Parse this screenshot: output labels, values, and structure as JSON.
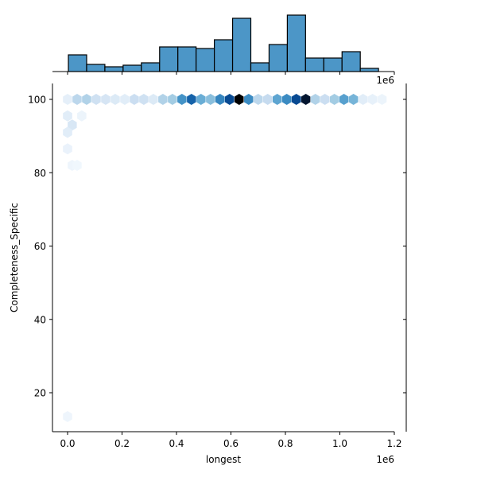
{
  "chart_data": {
    "type": "hexbin",
    "kind": "jointplot",
    "title": "",
    "xlabel": "longest",
    "ylabel": "Completeness_Specific",
    "x_offset_label": "1e6",
    "top_offset_label": "1e6",
    "xlim": [
      -0.05,
      1.22
    ],
    "ylim": [
      9.5,
      104.5
    ],
    "x_scale": 1000000,
    "xticks": [
      0.0,
      0.2,
      0.4,
      0.6,
      0.8,
      1.0,
      1.2
    ],
    "xtick_labels": [
      "0.0",
      "0.2",
      "0.4",
      "0.6",
      "0.8",
      "1.0",
      "1.2"
    ],
    "yticks": [
      20,
      40,
      60,
      80,
      100
    ],
    "ytick_labels": [
      "20",
      "40",
      "60",
      "80",
      "100"
    ],
    "grid": false,
    "colormap": "Blues",
    "bar_color": "#4c96c7",
    "bar_edge_color": "#000000",
    "marginal_x_histogram": {
      "bin_edges_1e6": [
        0.003,
        0.07,
        0.137,
        0.204,
        0.271,
        0.338,
        0.405,
        0.472,
        0.539,
        0.606,
        0.673,
        0.74,
        0.807,
        0.874,
        0.941,
        1.008,
        1.075,
        1.142
      ],
      "relative_heights": [
        21,
        9,
        6,
        8,
        11,
        31,
        31,
        29,
        40,
        67,
        11,
        34,
        71,
        17,
        17,
        25,
        4
      ]
    },
    "hexbins": [
      {
        "x": 0.0,
        "y": 100,
        "intensity": 0.08
      },
      {
        "x": 0.035,
        "y": 100,
        "intensity": 0.25
      },
      {
        "x": 0.07,
        "y": 100,
        "intensity": 0.28
      },
      {
        "x": 0.105,
        "y": 100,
        "intensity": 0.18
      },
      {
        "x": 0.14,
        "y": 100,
        "intensity": 0.15
      },
      {
        "x": 0.175,
        "y": 100,
        "intensity": 0.12
      },
      {
        "x": 0.21,
        "y": 100,
        "intensity": 0.1
      },
      {
        "x": 0.245,
        "y": 100,
        "intensity": 0.2
      },
      {
        "x": 0.28,
        "y": 100,
        "intensity": 0.18
      },
      {
        "x": 0.315,
        "y": 100,
        "intensity": 0.12
      },
      {
        "x": 0.35,
        "y": 100,
        "intensity": 0.28
      },
      {
        "x": 0.385,
        "y": 100,
        "intensity": 0.32
      },
      {
        "x": 0.42,
        "y": 100,
        "intensity": 0.55
      },
      {
        "x": 0.455,
        "y": 100,
        "intensity": 0.72
      },
      {
        "x": 0.49,
        "y": 100,
        "intensity": 0.45
      },
      {
        "x": 0.525,
        "y": 100,
        "intensity": 0.38
      },
      {
        "x": 0.56,
        "y": 100,
        "intensity": 0.6
      },
      {
        "x": 0.595,
        "y": 100,
        "intensity": 0.8
      },
      {
        "x": 0.63,
        "y": 100,
        "intensity": 1.0
      },
      {
        "x": 0.665,
        "y": 100,
        "intensity": 0.58
      },
      {
        "x": 0.7,
        "y": 100,
        "intensity": 0.25
      },
      {
        "x": 0.735,
        "y": 100,
        "intensity": 0.22
      },
      {
        "x": 0.77,
        "y": 100,
        "intensity": 0.48
      },
      {
        "x": 0.805,
        "y": 100,
        "intensity": 0.58
      },
      {
        "x": 0.84,
        "y": 100,
        "intensity": 0.8
      },
      {
        "x": 0.875,
        "y": 100,
        "intensity": 0.95
      },
      {
        "x": 0.91,
        "y": 100,
        "intensity": 0.28
      },
      {
        "x": 0.945,
        "y": 100,
        "intensity": 0.2
      },
      {
        "x": 0.98,
        "y": 100,
        "intensity": 0.32
      },
      {
        "x": 1.015,
        "y": 100,
        "intensity": 0.5
      },
      {
        "x": 1.05,
        "y": 100,
        "intensity": 0.42
      },
      {
        "x": 1.085,
        "y": 100,
        "intensity": 0.1
      },
      {
        "x": 1.12,
        "y": 100,
        "intensity": 0.07
      },
      {
        "x": 1.155,
        "y": 100,
        "intensity": 0.05
      },
      {
        "x": 0.0,
        "y": 95.5,
        "intensity": 0.1
      },
      {
        "x": 0.017,
        "y": 93,
        "intensity": 0.14
      },
      {
        "x": 0.052,
        "y": 95.5,
        "intensity": 0.05
      },
      {
        "x": 0.0,
        "y": 91,
        "intensity": 0.1
      },
      {
        "x": 0.0,
        "y": 86.5,
        "intensity": 0.06
      },
      {
        "x": 0.017,
        "y": 82,
        "intensity": 0.04
      },
      {
        "x": 0.035,
        "y": 82,
        "intensity": 0.03
      },
      {
        "x": 0.0,
        "y": 13.5,
        "intensity": 0.04
      }
    ]
  }
}
